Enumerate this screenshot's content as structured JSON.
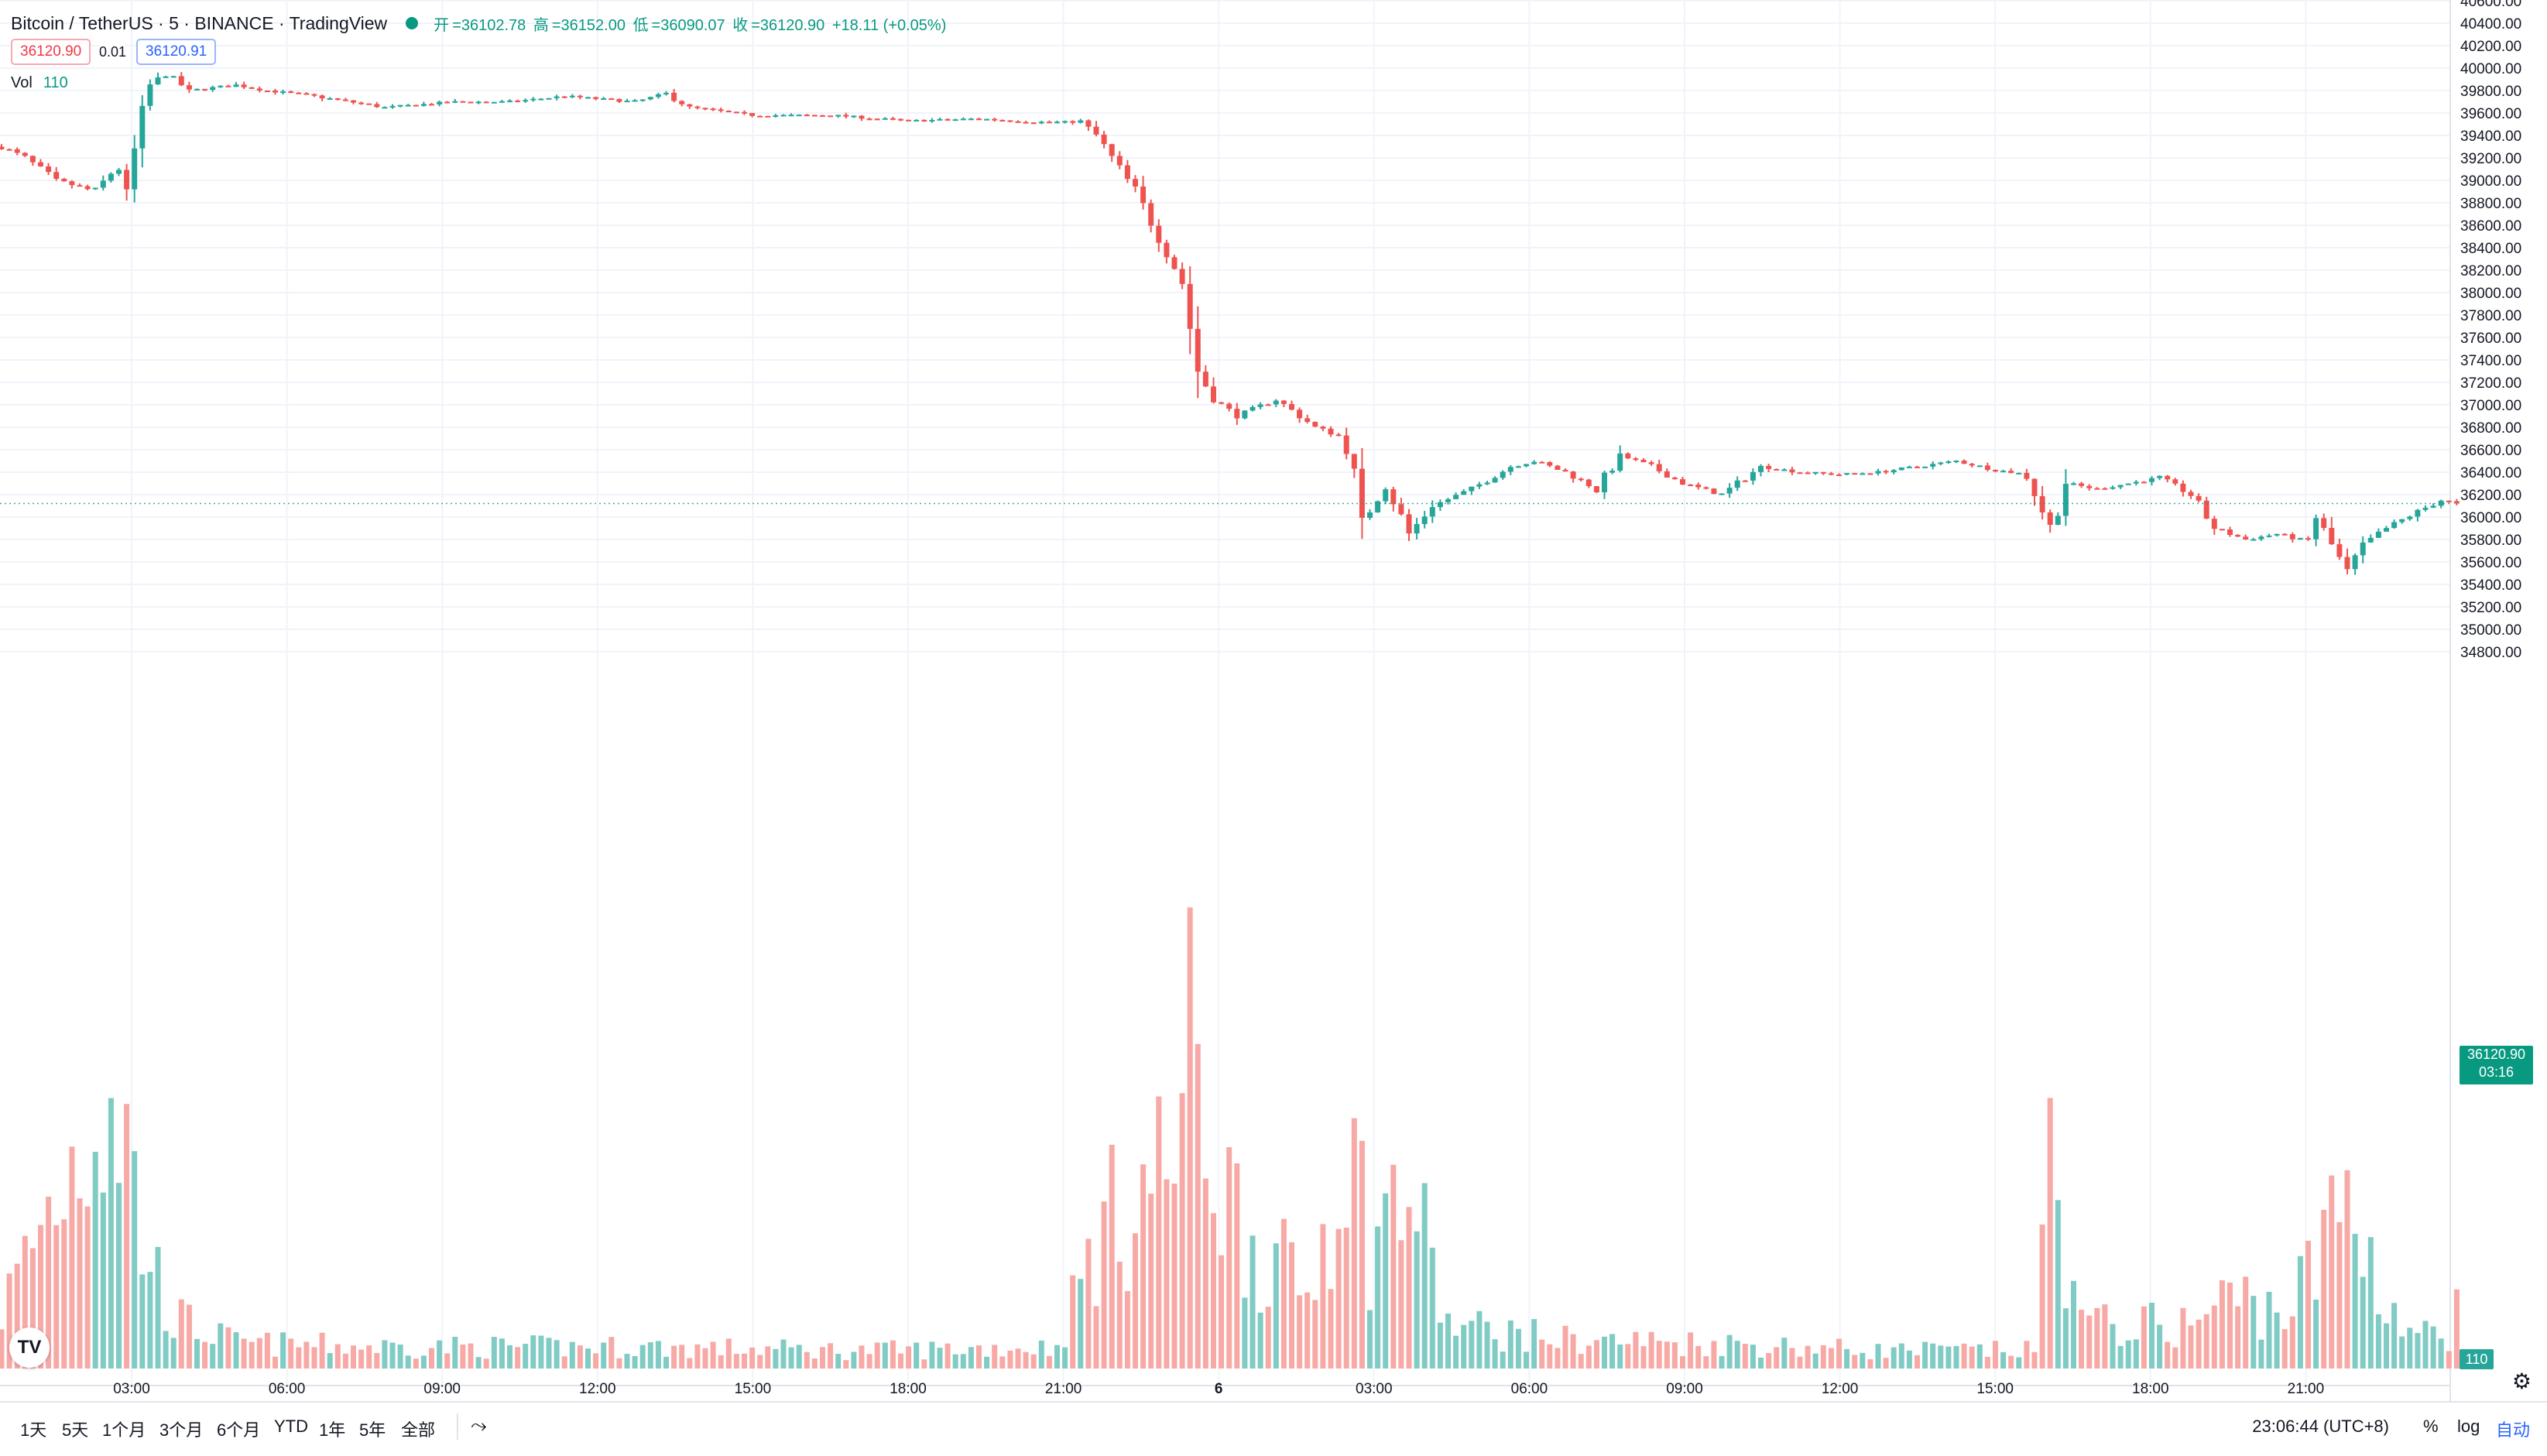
{
  "header": {
    "symbol": "Bitcoin / TetherUS · 5 · BINANCE · TradingView",
    "ohlc": {
      "open_label": "开",
      "open": "36102.78",
      "high_label": "高",
      "high": "36152.00",
      "low_label": "低",
      "low": "36090.07",
      "close_label": "收",
      "close": "36120.90",
      "change": "+18.11 (+0.05%)"
    },
    "bid": "36120.90",
    "spread": "0.01",
    "ask": "36120.91",
    "vol_label": "Vol",
    "vol_value": "110"
  },
  "price_scale": {
    "ticks": [
      "40600.00",
      "40400.00",
      "40200.00",
      "40000.00",
      "39800.00",
      "39600.00",
      "39400.00",
      "39200.00",
      "39000.00",
      "38800.00",
      "38600.00",
      "38400.00",
      "38200.00",
      "38000.00",
      "37800.00",
      "37600.00",
      "37400.00",
      "37200.00",
      "37000.00",
      "36800.00",
      "36600.00",
      "36400.00",
      "36200.00",
      "36000.00",
      "35800.00",
      "35600.00",
      "35400.00",
      "35200.00",
      "35000.00",
      "34800.00"
    ],
    "last_price": "36120.90",
    "countdown": "03:16",
    "volume_tag": "110"
  },
  "time_scale": {
    "ticks": [
      "03:00",
      "06:00",
      "09:00",
      "12:00",
      "15:00",
      "18:00",
      "21:00",
      "6",
      "03:00",
      "06:00",
      "09:00",
      "12:00",
      "15:00",
      "18:00",
      "21:00"
    ]
  },
  "toolbar": {
    "ranges": [
      "1天",
      "5天",
      "1个月",
      "3个月",
      "6个月",
      "YTD",
      "1年",
      "5年",
      "全部"
    ],
    "clock": "23:06:44 (UTC+8)",
    "percent": "%",
    "log": "log",
    "auto": "自动"
  },
  "colors": {
    "up": "#26a69a",
    "down": "#ef5350",
    "up_volume": "#80cbc4",
    "down_volume": "#f7a9a6",
    "last_price": "#089981"
  },
  "icons": {
    "logo": "tradingview-logo-icon",
    "compare": "compare-icon",
    "settings": "gear-icon"
  },
  "chart_data": {
    "type": "candlestick",
    "symbol": "BTCUSDT",
    "interval_minutes": 5,
    "ylim": [
      34800,
      40600
    ],
    "path_points": [
      [
        0,
        39300
      ],
      [
        3,
        39200
      ],
      [
        7,
        39000
      ],
      [
        12,
        38900
      ],
      [
        15,
        39150
      ],
      [
        16,
        38750
      ],
      [
        17,
        39250
      ],
      [
        19,
        39850
      ],
      [
        21,
        39950
      ],
      [
        24,
        39800
      ],
      [
        30,
        39850
      ],
      [
        34,
        39800
      ],
      [
        40,
        39750
      ],
      [
        49,
        39650
      ],
      [
        58,
        39700
      ],
      [
        65,
        39700
      ],
      [
        72,
        39750
      ],
      [
        81,
        39700
      ],
      [
        85,
        39770
      ],
      [
        88,
        39650
      ],
      [
        96,
        39580
      ],
      [
        106,
        39580
      ],
      [
        116,
        39530
      ],
      [
        125,
        39550
      ],
      [
        132,
        39520
      ],
      [
        138,
        39520
      ],
      [
        140,
        39400
      ],
      [
        142,
        39200
      ],
      [
        145,
        38900
      ],
      [
        148,
        38500
      ],
      [
        151,
        38100
      ],
      [
        153,
        37300
      ],
      [
        155,
        37050
      ],
      [
        158,
        36900
      ],
      [
        163,
        37050
      ],
      [
        168,
        36800
      ],
      [
        172,
        36700
      ],
      [
        174,
        35950
      ],
      [
        177,
        36300
      ],
      [
        180,
        35850
      ],
      [
        183,
        36100
      ],
      [
        188,
        36250
      ],
      [
        193,
        36450
      ],
      [
        196,
        36500
      ],
      [
        200,
        36400
      ],
      [
        204,
        36250
      ],
      [
        207,
        36550
      ],
      [
        211,
        36450
      ],
      [
        215,
        36300
      ],
      [
        220,
        36200
      ],
      [
        225,
        36450
      ],
      [
        230,
        36400
      ],
      [
        235,
        36380
      ],
      [
        240,
        36400
      ],
      [
        245,
        36450
      ],
      [
        250,
        36500
      ],
      [
        255,
        36420
      ],
      [
        259,
        36380
      ],
      [
        262,
        35900
      ],
      [
        264,
        36300
      ],
      [
        268,
        36250
      ],
      [
        272,
        36300
      ],
      [
        276,
        36350
      ],
      [
        280,
        36200
      ],
      [
        283,
        35900
      ],
      [
        287,
        35800
      ],
      [
        291,
        35850
      ],
      [
        295,
        35780
      ],
      [
        296,
        36000
      ],
      [
        298,
        35750
      ],
      [
        300,
        35500
      ],
      [
        302,
        35750
      ],
      [
        305,
        35900
      ],
      [
        309,
        36050
      ],
      [
        312,
        36150
      ],
      [
        314,
        36120
      ]
    ],
    "volume_path": [
      [
        0,
        80
      ],
      [
        9,
        290
      ],
      [
        11,
        340
      ],
      [
        14,
        410
      ],
      [
        16,
        320
      ],
      [
        18,
        180
      ],
      [
        22,
        70
      ],
      [
        30,
        35
      ],
      [
        50,
        30
      ],
      [
        80,
        30
      ],
      [
        110,
        25
      ],
      [
        135,
        30
      ],
      [
        140,
        180
      ],
      [
        146,
        250
      ],
      [
        150,
        300
      ],
      [
        152,
        430
      ],
      [
        156,
        260
      ],
      [
        160,
        180
      ],
      [
        167,
        100
      ],
      [
        172,
        330
      ],
      [
        175,
        180
      ],
      [
        180,
        250
      ],
      [
        185,
        60
      ],
      [
        200,
        40
      ],
      [
        220,
        35
      ],
      [
        240,
        25
      ],
      [
        260,
        25
      ],
      [
        262,
        300
      ],
      [
        266,
        60
      ],
      [
        280,
        60
      ],
      [
        285,
        100
      ],
      [
        292,
        80
      ],
      [
        296,
        140
      ],
      [
        300,
        250
      ],
      [
        303,
        150
      ],
      [
        307,
        60
      ],
      [
        312,
        40
      ],
      [
        314,
        15
      ]
    ],
    "last_volume": 110
  }
}
